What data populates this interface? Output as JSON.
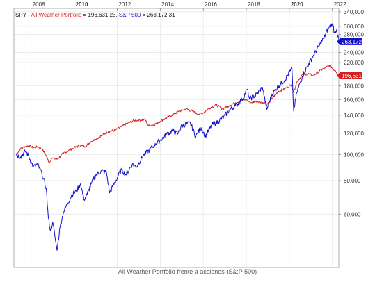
{
  "caption": "All Weather Portfolio frente a acciones (S&;P 500)",
  "chart_data": {
    "type": "line",
    "ticker": "SPY",
    "legend": {
      "separator": " - ",
      "equals": " = ",
      "comma": ", "
    },
    "x_ticks": [
      "2008",
      "2010",
      "2012",
      "2014",
      "2016",
      "2018",
      "2020",
      "2022"
    ],
    "x_ticks_bold": [
      "2010",
      "2020"
    ],
    "xlim": [
      2007.2,
      2022.3
    ],
    "y_scale": "log",
    "ylim": [
      38000,
      350000
    ],
    "y_ticks": [
      {
        "value": 340000,
        "label": "340,000"
      },
      {
        "value": 300000,
        "label": "300,000"
      },
      {
        "value": 280000,
        "label": "280,000"
      },
      {
        "value": 240000,
        "label": "240,000"
      },
      {
        "value": 220000,
        "label": "220,000"
      },
      {
        "value": 180000,
        "label": "180,000"
      },
      {
        "value": 160000,
        "label": "160,000"
      },
      {
        "value": 140000,
        "label": "140,000"
      },
      {
        "value": 120000,
        "label": "120,000"
      },
      {
        "value": 100000,
        "label": "100,000"
      },
      {
        "value": 80000,
        "label": "80,000"
      },
      {
        "value": 60000,
        "label": "60,000"
      }
    ],
    "grid": true,
    "series": [
      {
        "name": "All Weather Portfolio",
        "legend_value": "196,631.23",
        "last_label": "196,631",
        "color": "#d42020",
        "points": [
          [
            2007.3,
            100000
          ],
          [
            2007.5,
            105000
          ],
          [
            2007.7,
            107000
          ],
          [
            2007.9,
            108000
          ],
          [
            2008.1,
            106000
          ],
          [
            2008.3,
            107000
          ],
          [
            2008.5,
            105000
          ],
          [
            2008.7,
            99000
          ],
          [
            2008.85,
            93000
          ],
          [
            2008.95,
            97000
          ],
          [
            2009.2,
            96000
          ],
          [
            2009.5,
            101000
          ],
          [
            2009.8,
            104000
          ],
          [
            2010.0,
            106000
          ],
          [
            2010.3,
            108000
          ],
          [
            2010.5,
            107000
          ],
          [
            2010.8,
            112000
          ],
          [
            2011.0,
            114000
          ],
          [
            2011.3,
            118000
          ],
          [
            2011.6,
            122000
          ],
          [
            2011.9,
            123000
          ],
          [
            2012.2,
            127000
          ],
          [
            2012.5,
            131000
          ],
          [
            2012.8,
            134000
          ],
          [
            2013.0,
            134000
          ],
          [
            2013.3,
            135000
          ],
          [
            2013.45,
            128000
          ],
          [
            2013.7,
            129000
          ],
          [
            2014.0,
            133000
          ],
          [
            2014.3,
            137000
          ],
          [
            2014.6,
            141000
          ],
          [
            2014.9,
            145000
          ],
          [
            2015.2,
            148000
          ],
          [
            2015.5,
            145000
          ],
          [
            2015.8,
            141000
          ],
          [
            2016.0,
            143000
          ],
          [
            2016.3,
            149000
          ],
          [
            2016.6,
            153000
          ],
          [
            2016.9,
            148000
          ],
          [
            2017.2,
            152000
          ],
          [
            2017.5,
            156000
          ],
          [
            2017.8,
            159000
          ],
          [
            2018.0,
            160000
          ],
          [
            2018.2,
            156000
          ],
          [
            2018.5,
            158000
          ],
          [
            2018.8,
            156000
          ],
          [
            2018.95,
            152000
          ],
          [
            2019.2,
            162000
          ],
          [
            2019.5,
            172000
          ],
          [
            2019.8,
            176000
          ],
          [
            2020.1,
            182000
          ],
          [
            2020.2,
            171000
          ],
          [
            2020.35,
            186000
          ],
          [
            2020.6,
            198000
          ],
          [
            2020.9,
            200000
          ],
          [
            2021.1,
            196000
          ],
          [
            2021.4,
            205000
          ],
          [
            2021.7,
            211000
          ],
          [
            2021.9,
            215000
          ],
          [
            2022.0,
            209000
          ],
          [
            2022.15,
            205000
          ],
          [
            2022.3,
            196631
          ]
        ]
      },
      {
        "name": "S&P 500",
        "legend_value": "263,172.31",
        "last_label": "263,172",
        "color": "#1010c8",
        "points": [
          [
            2007.3,
            100000
          ],
          [
            2007.5,
            98000
          ],
          [
            2007.75,
            103000
          ],
          [
            2007.9,
            98000
          ],
          [
            2008.1,
            90000
          ],
          [
            2008.3,
            92000
          ],
          [
            2008.5,
            85000
          ],
          [
            2008.7,
            75000
          ],
          [
            2008.8,
            58000
          ],
          [
            2008.9,
            52000
          ],
          [
            2009.0,
            56000
          ],
          [
            2009.1,
            50000
          ],
          [
            2009.2,
            44000
          ],
          [
            2009.35,
            54000
          ],
          [
            2009.5,
            61000
          ],
          [
            2009.7,
            66000
          ],
          [
            2009.9,
            71000
          ],
          [
            2010.1,
            73000
          ],
          [
            2010.3,
            78000
          ],
          [
            2010.45,
            68000
          ],
          [
            2010.6,
            71000
          ],
          [
            2010.8,
            78000
          ],
          [
            2011.0,
            84000
          ],
          [
            2011.3,
            87000
          ],
          [
            2011.5,
            86000
          ],
          [
            2011.65,
            72000
          ],
          [
            2011.9,
            79000
          ],
          [
            2012.2,
            88000
          ],
          [
            2012.4,
            84000
          ],
          [
            2012.7,
            92000
          ],
          [
            2012.9,
            90000
          ],
          [
            2013.2,
            99000
          ],
          [
            2013.5,
            104000
          ],
          [
            2013.8,
            110000
          ],
          [
            2014.0,
            113000
          ],
          [
            2014.3,
            119000
          ],
          [
            2014.6,
            123000
          ],
          [
            2014.8,
            119000
          ],
          [
            2015.0,
            128000
          ],
          [
            2015.4,
            131000
          ],
          [
            2015.65,
            117000
          ],
          [
            2015.9,
            126000
          ],
          [
            2016.1,
            117000
          ],
          [
            2016.4,
            129000
          ],
          [
            2016.7,
            133000
          ],
          [
            2016.95,
            138000
          ],
          [
            2017.2,
            146000
          ],
          [
            2017.5,
            152000
          ],
          [
            2017.8,
            160000
          ],
          [
            2018.05,
            175000
          ],
          [
            2018.15,
            161000
          ],
          [
            2018.5,
            168000
          ],
          [
            2018.75,
            178000
          ],
          [
            2018.95,
            147000
          ],
          [
            2019.2,
            168000
          ],
          [
            2019.5,
            180000
          ],
          [
            2019.8,
            190000
          ],
          [
            2020.05,
            205000
          ],
          [
            2020.12,
            210000
          ],
          [
            2020.2,
            145000
          ],
          [
            2020.35,
            170000
          ],
          [
            2020.6,
            195000
          ],
          [
            2020.9,
            218000
          ],
          [
            2021.1,
            232000
          ],
          [
            2021.4,
            255000
          ],
          [
            2021.6,
            272000
          ],
          [
            2021.85,
            298000
          ],
          [
            2022.0,
            307000
          ],
          [
            2022.1,
            285000
          ],
          [
            2022.2,
            292000
          ],
          [
            2022.3,
            263172
          ]
        ]
      }
    ]
  }
}
